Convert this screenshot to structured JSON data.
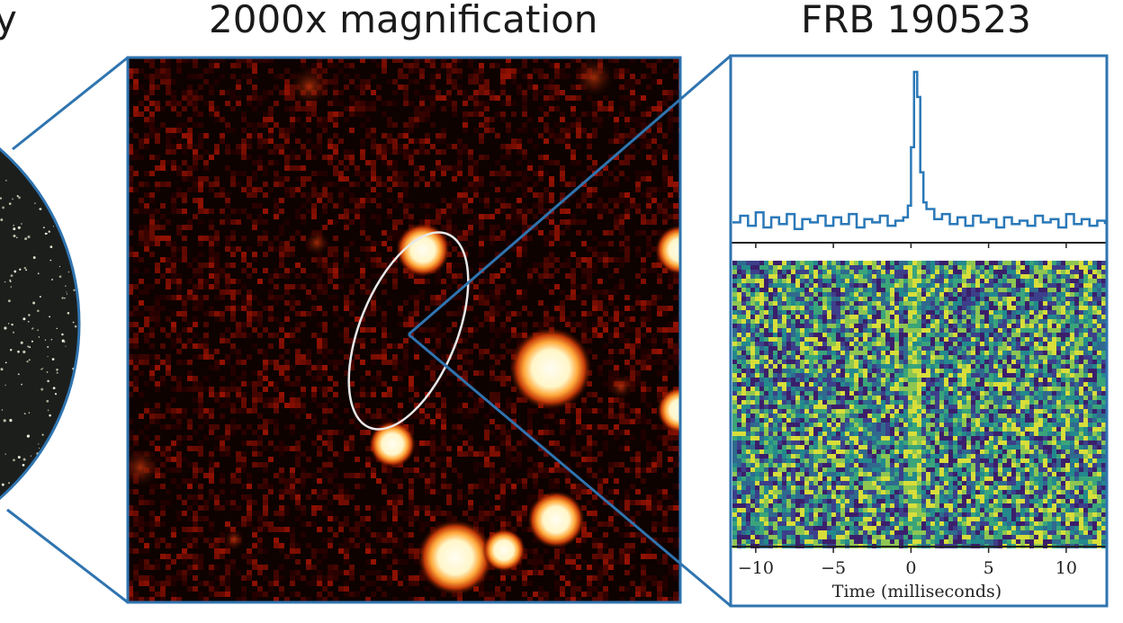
{
  "titles": {
    "cut_fragment": "y",
    "magnification": "2000x magnification",
    "frb": "FRB 190523"
  },
  "colors": {
    "frame": "#2f74b0",
    "pulse_line": "#2a78b8",
    "heat_bg": "#0d0200",
    "star_core": "#fffdf2",
    "ellipse": "#e8e8e8"
  },
  "chart_data": {
    "type": "line",
    "title": "FRB 190523",
    "xlabel": "Time (milliseconds)",
    "ylabel": "",
    "xlim": [
      -11.5,
      12.5
    ],
    "xticks": [
      -10,
      -5,
      0,
      5,
      10
    ],
    "xtick_labels": [
      "−10",
      "−5",
      "0",
      "5",
      "10"
    ],
    "series": [
      {
        "x": [
          -11.5,
          -11.0,
          -10.5,
          -10.0,
          -9.5,
          -9.0,
          -8.5,
          -8.0,
          -7.5,
          -7.0,
          -6.5,
          -6.0,
          -5.5,
          -5.0,
          -4.5,
          -4.0,
          -3.5,
          -3.0,
          -2.5,
          -2.0,
          -1.5,
          -1.0,
          -0.5,
          -0.2,
          0.0,
          0.2,
          0.4,
          0.6,
          0.8,
          1.0,
          1.5,
          2.0,
          2.5,
          3.0,
          3.5,
          4.0,
          4.5,
          5.0,
          5.5,
          6.0,
          6.5,
          7.0,
          7.5,
          8.0,
          8.5,
          9.0,
          9.5,
          10.0,
          10.5,
          11.0,
          11.5,
          12.0,
          12.5
        ],
        "y": [
          0.1,
          0.14,
          0.08,
          0.16,
          0.07,
          0.13,
          0.09,
          0.15,
          0.06,
          0.12,
          0.1,
          0.14,
          0.08,
          0.13,
          0.09,
          0.15,
          0.07,
          0.12,
          0.1,
          0.14,
          0.08,
          0.11,
          0.13,
          0.2,
          0.55,
          1.0,
          0.85,
          0.4,
          0.22,
          0.18,
          0.12,
          0.15,
          0.09,
          0.13,
          0.08,
          0.14,
          0.1,
          0.12,
          0.07,
          0.13,
          0.09,
          0.11,
          0.08,
          0.14,
          0.1,
          0.12,
          0.07,
          0.15,
          0.09,
          0.12,
          0.08,
          0.11,
          0.09
        ]
      }
    ]
  }
}
